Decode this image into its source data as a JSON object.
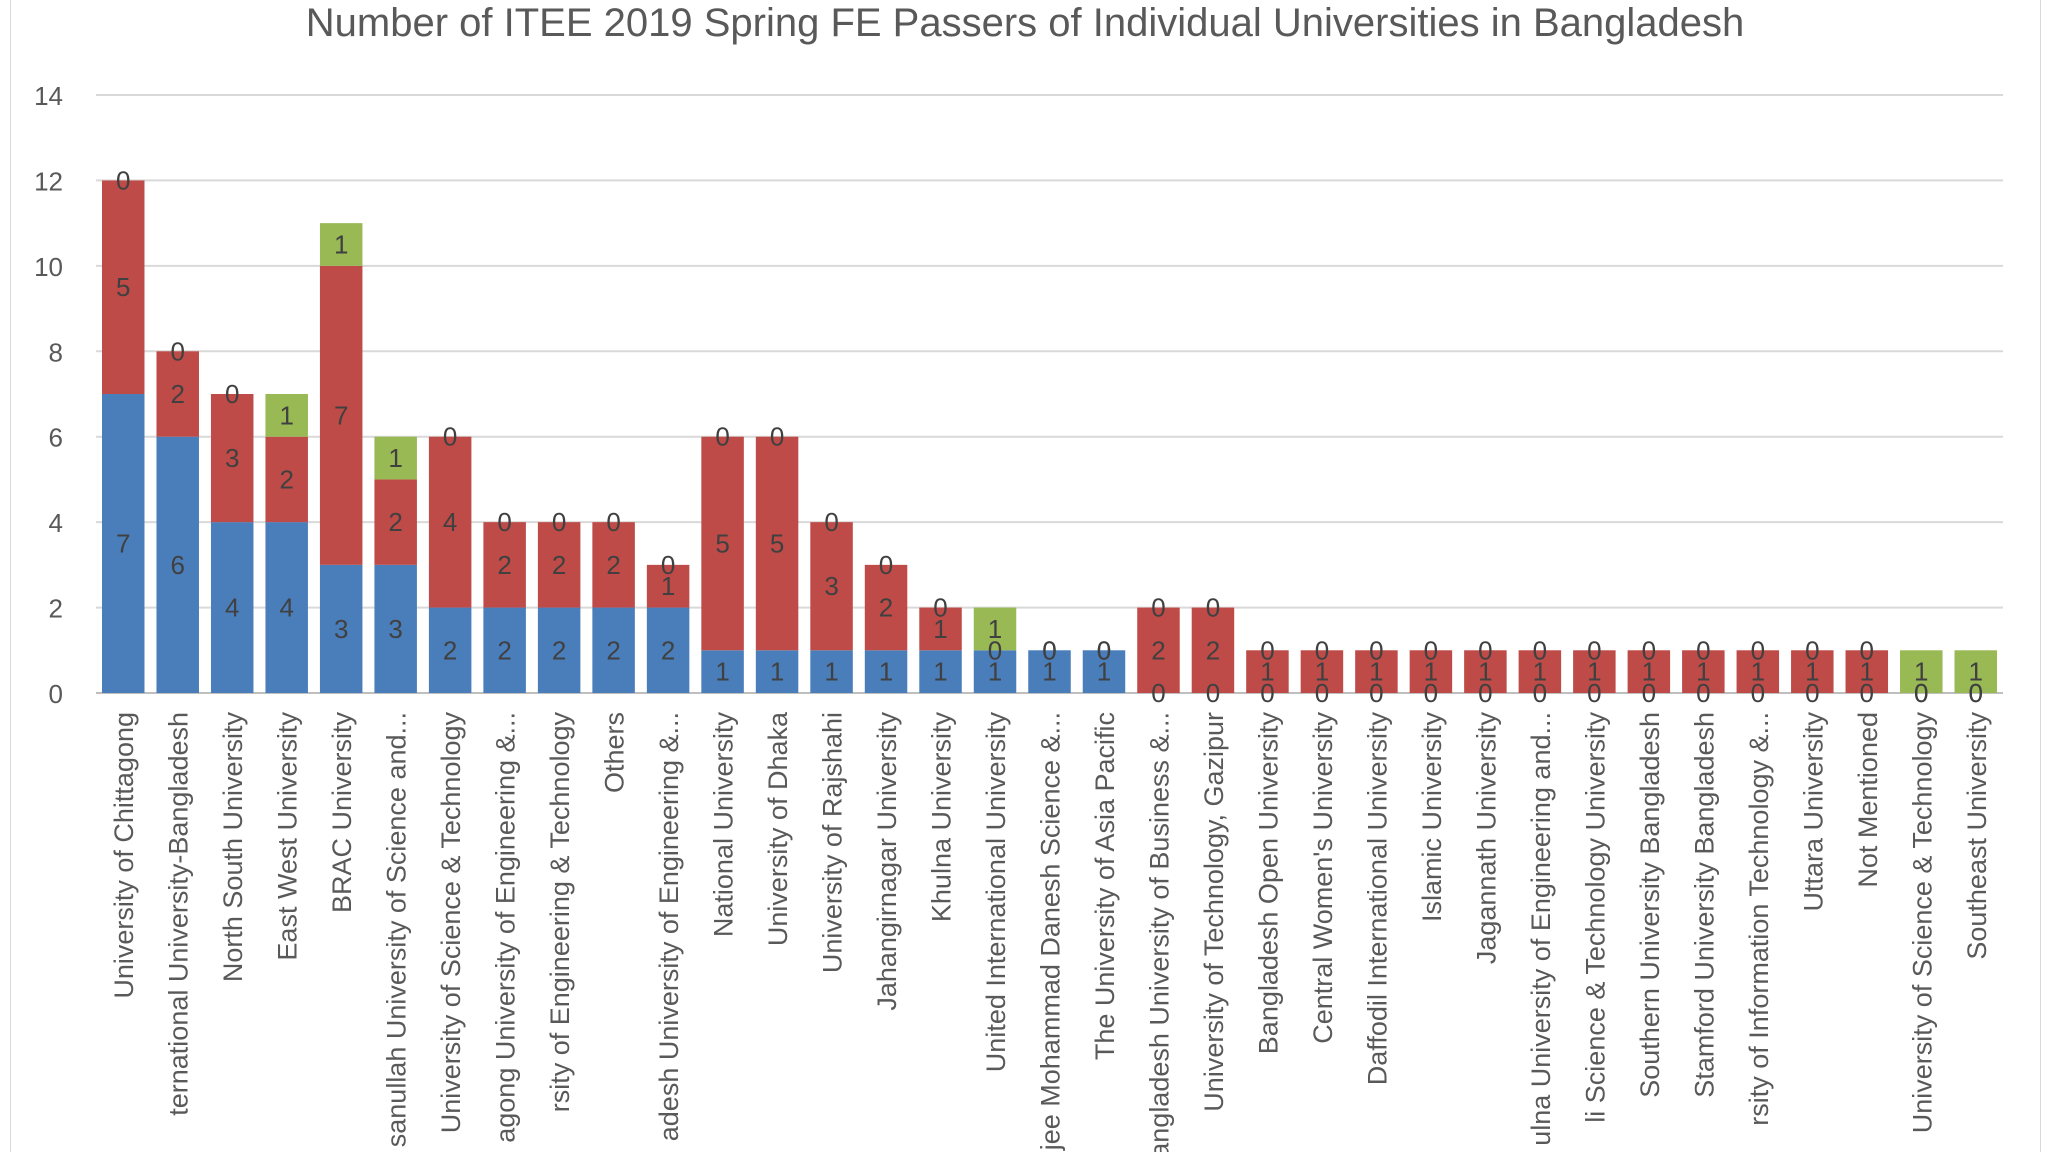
{
  "chart_data": {
    "type": "bar",
    "stacked": true,
    "title": "Number of ITEE 2019 Spring FE Passers of Individual Universities in Bangladesh",
    "xlabel": "",
    "ylabel": "",
    "ylim": [
      0,
      14
    ],
    "yticks": [
      0,
      2,
      4,
      6,
      8,
      10,
      12,
      14
    ],
    "grid": true,
    "categories": [
      "University of Chittagong",
      "ternational University-Bangladesh",
      "North South University",
      "East West University",
      "BRAC University",
      "sanullah University of Science and...",
      "University of Science & Technology",
      "agong University of Engineering &...",
      "rsity of Engineering & Technology",
      "Others",
      "adesh University of Engineering &...",
      "National University",
      "University of Dhaka",
      "University of Rajshahi",
      "Jahangirnagar University",
      "Khulna University",
      "United International University",
      "jee Mohammad Danesh Science &...",
      "The University of Asia Pacific",
      "angladesh University of Business &...",
      "University of Technology, Gazipur",
      "Bangladesh Open University",
      "Central Women's University",
      "Daffodil International University",
      "Islamic University",
      "Jagannath University",
      "ulna University of Engineering and...",
      "li Science & Technology University",
      "Southern University Bangladesh",
      "Stamford University Bangladesh",
      "rsity of Information Technology &...",
      "Uttara University",
      "Not Mentioned",
      "University of Science & Technology",
      "Southeast University"
    ],
    "series": [
      {
        "color": "#4a7ebb",
        "values": [
          7,
          6,
          4,
          4,
          3,
          3,
          2,
          2,
          2,
          2,
          2,
          1,
          1,
          1,
          1,
          1,
          1,
          1,
          1,
          0,
          0,
          0,
          0,
          0,
          0,
          0,
          0,
          0,
          0,
          0,
          0,
          0,
          0,
          0,
          0
        ]
      },
      {
        "color": "#be4b48",
        "values": [
          5,
          2,
          3,
          2,
          7,
          2,
          4,
          2,
          2,
          2,
          1,
          5,
          5,
          3,
          2,
          1,
          0,
          0,
          0,
          2,
          2,
          1,
          1,
          1,
          1,
          1,
          1,
          1,
          1,
          1,
          1,
          1,
          1,
          0,
          0
        ]
      },
      {
        "color": "#98b954",
        "values": [
          0,
          0,
          0,
          1,
          1,
          1,
          0,
          0,
          0,
          0,
          0,
          0,
          0,
          0,
          0,
          0,
          1,
          0,
          0,
          0,
          0,
          0,
          0,
          0,
          0,
          0,
          0,
          0,
          0,
          0,
          0,
          0,
          0,
          1,
          1
        ]
      }
    ]
  }
}
